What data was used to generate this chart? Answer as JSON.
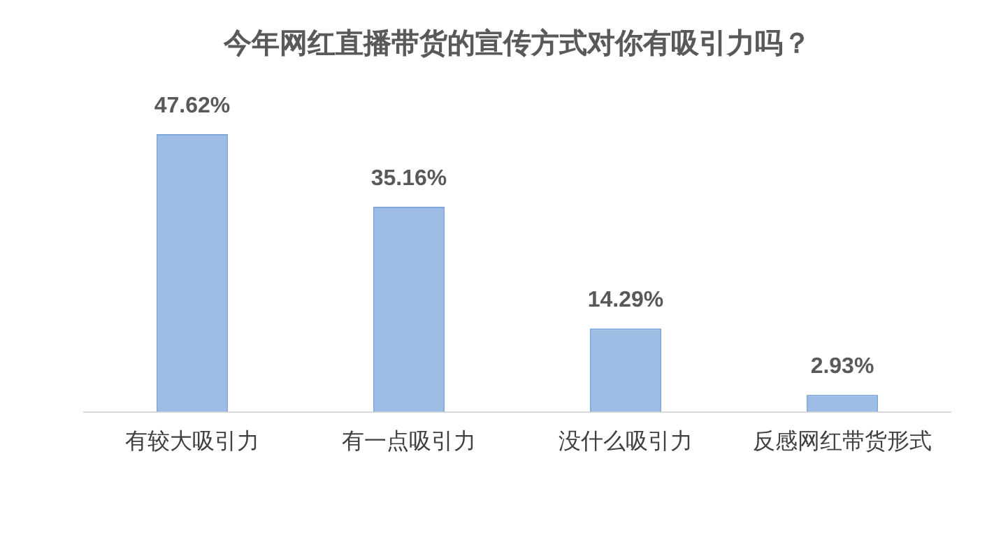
{
  "chart_data": {
    "type": "bar",
    "title": "今年网红直播带货的宣传方式对你有吸引力吗？",
    "categories": [
      "有较大吸引力",
      "有一点吸引力",
      "没什么吸引力",
      "反感网红带货形式"
    ],
    "values": [
      47.62,
      35.16,
      14.29,
      2.93
    ],
    "value_labels": [
      "47.62%",
      "35.16%",
      "14.29%",
      "2.93%"
    ],
    "color": "#9dbde4",
    "grid": false,
    "legend": false
  }
}
